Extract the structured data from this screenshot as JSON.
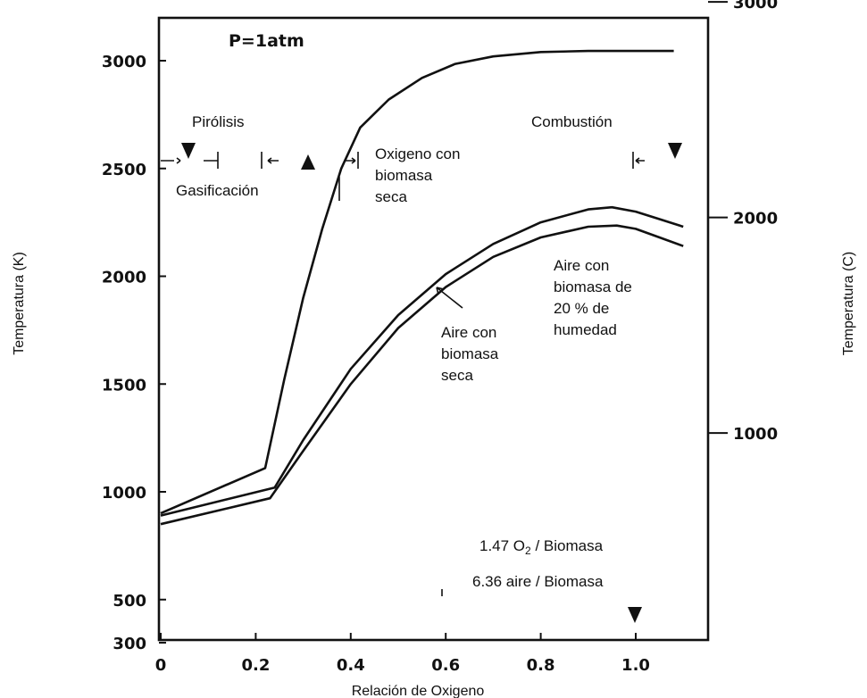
{
  "chart_data": {
    "type": "line",
    "title": "P=1atm",
    "xlabel": "Relación de Oxigeno",
    "ylabel_left": "Temperatura (K)",
    "ylabel_right": "Temperatura (C)",
    "xlim": [
      0,
      1.12
    ],
    "ylim": [
      300,
      3250
    ],
    "x_ticks": [
      {
        "value": 0,
        "label": "0"
      },
      {
        "value": 0.2,
        "label": "0.2"
      },
      {
        "value": 0.4,
        "label": "0.4"
      },
      {
        "value": 0.6,
        "label": "0.6"
      },
      {
        "value": 0.8,
        "label": "0.8"
      },
      {
        "value": 1.0,
        "label": "1.0"
      }
    ],
    "y_ticks_left": [
      {
        "value": 300,
        "label": "300"
      },
      {
        "value": 500,
        "label": "500"
      },
      {
        "value": 1000,
        "label": "1000"
      },
      {
        "value": 1500,
        "label": "1500"
      },
      {
        "value": 2000,
        "label": "2000"
      },
      {
        "value": 2500,
        "label": "2500"
      },
      {
        "value": 3000,
        "label": "3000"
      }
    ],
    "y_ticks_right": [
      {
        "value": 1000,
        "label": "1000"
      },
      {
        "value": 2000,
        "label": "2000"
      },
      {
        "value": 3000,
        "label": "3000"
      }
    ],
    "series": [
      {
        "key": "oxigeno",
        "x": [
          0,
          0.22,
          0.26,
          0.3,
          0.34,
          0.38,
          0.42,
          0.48,
          0.55,
          0.62,
          0.7,
          0.8,
          0.9,
          1.0,
          1.08
        ],
        "y": [
          900,
          1110,
          1520,
          1900,
          2220,
          2500,
          2690,
          2820,
          2920,
          2985,
          3020,
          3040,
          3045,
          3045,
          3045
        ]
      },
      {
        "key": "aire_seca",
        "x": [
          0,
          0.24,
          0.3,
          0.4,
          0.5,
          0.6,
          0.7,
          0.8,
          0.9,
          0.95,
          1.0,
          1.05,
          1.1
        ],
        "y": [
          890,
          1020,
          1240,
          1570,
          1820,
          2010,
          2150,
          2250,
          2310,
          2320,
          2300,
          2265,
          2230
        ]
      },
      {
        "key": "aire_humeda",
        "x": [
          0,
          0.23,
          0.3,
          0.4,
          0.5,
          0.6,
          0.7,
          0.8,
          0.9,
          0.96,
          1.0,
          1.05,
          1.1
        ],
        "y": [
          850,
          970,
          1190,
          1500,
          1760,
          1950,
          2090,
          2180,
          2230,
          2235,
          2220,
          2180,
          2140
        ]
      }
    ],
    "annotations": {
      "pirolisis": "Pirólisis",
      "gasificacion": "Gasificación",
      "combustion": "Combustión",
      "oxigeno_label": [
        "Oxigeno con",
        "biomasa",
        "seca"
      ],
      "aire_seca_label": [
        "Aire con",
        "biomasa",
        "seca"
      ],
      "aire_humeda_label": [
        "Aire con",
        "biomasa de",
        "20 % de",
        "humedad"
      ],
      "ratio_o2_prefix": "1.47 O",
      "ratio_o2_sub": "2",
      "ratio_o2_suffix": " / Biomasa",
      "ratio_aire": "6.36 aire / Biomasa"
    }
  }
}
